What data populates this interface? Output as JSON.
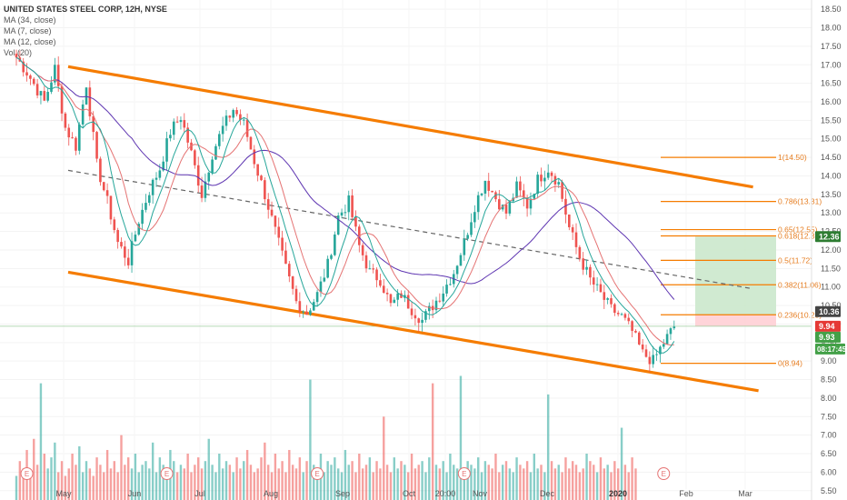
{
  "header": {
    "title": "UNITED STATES STEEL CORP, 12H, NYSE",
    "indicators": [
      "MA (34, close)",
      "MA (7, close)",
      "MA (12, close)",
      "Vol (20)"
    ]
  },
  "colors": {
    "up": "#26a69a",
    "down": "#ef5350",
    "channel": "#f57c00",
    "fib": "#f57c00",
    "ma34": "#5e35b1",
    "ma7": "#26a69a",
    "ma12": "#e57373",
    "long_target": "#c8e6c9",
    "long_stop": "#ffcdd2"
  },
  "chart_data": {
    "type": "candlestick",
    "y_axis_ticks": [
      "18.50",
      "18.00",
      "17.50",
      "17.00",
      "16.50",
      "16.00",
      "15.50",
      "15.00",
      "14.50",
      "14.00",
      "13.50",
      "13.00",
      "12.50",
      "12.00",
      "11.50",
      "11.00",
      "10.50",
      "10.00",
      "9.50",
      "9.00",
      "8.50",
      "8.00",
      "7.50",
      "7.00",
      "6.50",
      "6.00",
      "5.50"
    ],
    "x_axis_labels": [
      "May",
      "Jun",
      "Jul",
      "Aug",
      "Sep",
      "Oct",
      "20:00",
      "Nov",
      "Dec",
      "2020",
      "Feb",
      "Mar"
    ],
    "ylim": [
      5.2,
      18.7
    ],
    "price_path": [
      [
        0,
        17.2
      ],
      [
        3,
        16.8
      ],
      [
        8,
        16.0
      ],
      [
        11,
        16.9
      ],
      [
        14,
        15.3
      ],
      [
        17,
        14.8
      ],
      [
        20,
        16.5
      ],
      [
        23,
        14.3
      ],
      [
        26,
        13.3
      ],
      [
        29,
        12.2
      ],
      [
        32,
        11.7
      ],
      [
        35,
        12.8
      ],
      [
        38,
        13.6
      ],
      [
        41,
        14.2
      ],
      [
        44,
        15.2
      ],
      [
        47,
        15.6
      ],
      [
        50,
        14.6
      ],
      [
        53,
        13.5
      ],
      [
        56,
        14.6
      ],
      [
        59,
        15.3
      ],
      [
        62,
        15.8
      ],
      [
        65,
        15.4
      ],
      [
        68,
        14.4
      ],
      [
        71,
        13.5
      ],
      [
        74,
        12.5
      ],
      [
        77,
        11.5
      ],
      [
        80,
        10.6
      ],
      [
        83,
        10.3
      ],
      [
        86,
        10.8
      ],
      [
        89,
        11.6
      ],
      [
        92,
        12.9
      ],
      [
        95,
        13.3
      ],
      [
        98,
        12.1
      ],
      [
        101,
        11.4
      ],
      [
        104,
        11.2
      ],
      [
        107,
        10.5
      ],
      [
        110,
        10.8
      ],
      [
        113,
        10.4
      ],
      [
        116,
        10.1
      ],
      [
        119,
        10.5
      ],
      [
        122,
        10.9
      ],
      [
        125,
        11.4
      ],
      [
        128,
        12.2
      ],
      [
        131,
        13.2
      ],
      [
        134,
        13.9
      ],
      [
        137,
        13.4
      ],
      [
        140,
        13.0
      ],
      [
        143,
        13.7
      ],
      [
        146,
        13.2
      ],
      [
        149,
        13.9
      ],
      [
        152,
        14.2
      ],
      [
        155,
        13.8
      ],
      [
        158,
        12.6
      ],
      [
        161,
        11.8
      ],
      [
        164,
        11.2
      ],
      [
        167,
        10.8
      ],
      [
        170,
        10.4
      ],
      [
        173,
        10.2
      ],
      [
        176,
        9.8
      ],
      [
        179,
        9.2
      ],
      [
        182,
        9.0
      ],
      [
        185,
        9.5
      ],
      [
        188,
        9.93
      ]
    ],
    "current_price": "9.93",
    "countdown": "08:17:45",
    "price_tags": [
      {
        "value": "12.36",
        "color": "#2e7d32"
      },
      {
        "value": "10.36",
        "color": "#444444"
      },
      {
        "value": "9.94",
        "color": "#e53935"
      },
      {
        "value": "9.93",
        "color": "#43a047"
      }
    ],
    "channel": {
      "upper": [
        [
          0,
          16.95
        ],
        [
          187,
          13.7
        ]
      ],
      "lower": [
        [
          0,
          11.4
        ],
        [
          187,
          8.2
        ]
      ],
      "mid": [
        [
          0,
          14.15
        ],
        [
          187,
          10.95
        ]
      ]
    },
    "fib_levels": [
      {
        "label": "1(14.50)",
        "value": 14.5
      },
      {
        "label": "0.786(13.31)",
        "value": 13.31
      },
      {
        "label": "0.65(12.55)",
        "value": 12.55
      },
      {
        "label": "0.618(12.38)",
        "value": 12.38
      },
      {
        "label": "0.5(11.72)",
        "value": 11.72
      },
      {
        "label": "0.382(11.06)",
        "value": 11.06
      },
      {
        "label": "0.236(10.25)",
        "value": 10.25
      },
      {
        "label": "0(8.94)",
        "value": 8.94
      }
    ],
    "position": {
      "entry": 10.25,
      "target": 12.36,
      "stop": 9.94
    },
    "volume": [
      5.9,
      6.3,
      6.1,
      6.6,
      6.0,
      6.9,
      6.2,
      8.4,
      6.5,
      6.1,
      6.4,
      6.8,
      6.0,
      6.3,
      5.9,
      6.1,
      6.5,
      6.2,
      6.7,
      6.0,
      6.3,
      6.1,
      5.9,
      6.4,
      6.2,
      6.0,
      6.6,
      6.1,
      6.3,
      6.0,
      7.0,
      6.2,
      6.4,
      6.1,
      6.5,
      6.0,
      6.2,
      6.3,
      6.1,
      6.8,
      6.0,
      6.4,
      6.2,
      6.1,
      6.6,
      6.3,
      6.0,
      6.2,
      6.1,
      6.5,
      6.0,
      6.2,
      6.4,
      6.1,
      6.3,
      6.9,
      6.2,
      6.0,
      6.5,
      6.1,
      6.3,
      6.2,
      6.0,
      6.4,
      6.1,
      6.3,
      6.6,
      6.2,
      6.0,
      6.1,
      6.4,
      6.8,
      6.2,
      6.0,
      6.5,
      6.1,
      6.3,
      6.0,
      6.6,
      6.2,
      6.1,
      6.4,
      6.0,
      6.3,
      8.5,
      6.2,
      6.1,
      6.5,
      6.0,
      6.3,
      6.2,
      6.4,
      6.1,
      6.0,
      6.6,
      6.2,
      6.3,
      6.0,
      6.5,
      6.1,
      6.2,
      6.4,
      6.0,
      6.3,
      6.1,
      7.5,
      6.2,
      6.0,
      6.4,
      6.1,
      6.3,
      6.2,
      6.0,
      6.5,
      6.1,
      6.2,
      6.3,
      6.0,
      6.4,
      8.4,
      6.2,
      6.1,
      6.3,
      6.0,
      6.5,
      6.2,
      6.1,
      8.6,
      6.0,
      6.3,
      6.2,
      6.1,
      6.4,
      6.0,
      6.3,
      6.2,
      6.1,
      6.5,
      6.0,
      6.2,
      6.3,
      6.1,
      6.0,
      6.4,
      6.2,
      6.1,
      6.3,
      6.0,
      6.5,
      6.1,
      6.2,
      6.0,
      8.1,
      6.3,
      6.1,
      6.2,
      6.0,
      6.4,
      6.1,
      6.3,
      6.2,
      6.0,
      6.1,
      6.5,
      6.3,
      6.2,
      6.0,
      6.4,
      6.1,
      6.2,
      6.0,
      6.3,
      6.1,
      7.2,
      6.2,
      6.0,
      6.4,
      6.1
    ],
    "earnings_markers": [
      3,
      43,
      86,
      128,
      185
    ],
    "earnings_label": "E"
  }
}
